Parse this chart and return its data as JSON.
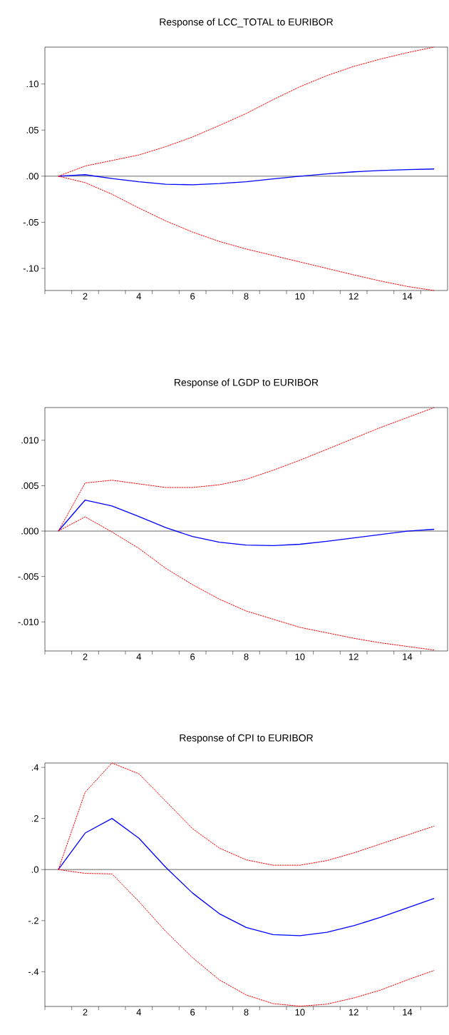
{
  "chart_data": [
    {
      "type": "line",
      "title": "Response of LCC_TOTAL to EURIBOR",
      "x": [
        1,
        2,
        3,
        4,
        5,
        6,
        7,
        8,
        9,
        10,
        11,
        12,
        13,
        14,
        15
      ],
      "xlim": [
        0.5,
        15.5
      ],
      "xticks": [
        {
          "value": 0.5,
          "label": null
        },
        {
          "value": 1.5,
          "label": null
        },
        2,
        {
          "value": 2.5,
          "label": null
        },
        {
          "value": 3.5,
          "label": null
        },
        4,
        {
          "value": 4.5,
          "label": null
        },
        {
          "value": 5.5,
          "label": null
        },
        6,
        {
          "value": 6.5,
          "label": null
        },
        {
          "value": 7.5,
          "label": null
        },
        8,
        {
          "value": 8.5,
          "label": null
        },
        {
          "value": 9.5,
          "label": null
        },
        10,
        {
          "value": 10.5,
          "label": null
        },
        {
          "value": 11.5,
          "label": null
        },
        12,
        {
          "value": 12.5,
          "label": null
        },
        {
          "value": 13.5,
          "label": null
        },
        14,
        {
          "value": 14.5,
          "label": null
        }
      ],
      "ylim": [
        -0.124,
        0.14
      ],
      "yticks": [
        {
          "value": -0.1,
          "label": "-.10"
        },
        {
          "value": -0.05,
          "label": "-.05"
        },
        {
          "value": 0,
          "label": ".00"
        },
        {
          "value": 0.05,
          "label": ".05"
        },
        {
          "value": 0.1,
          "label": ".10"
        }
      ],
      "ref_lines": [
        {
          "axis": "y",
          "value": 0,
          "color": "#000000"
        }
      ],
      "series": [
        {
          "color": "#ff0000",
          "line_style": "dashed",
          "values": [
            0,
            0.011,
            0.017,
            0.023,
            0.032,
            0.0425,
            0.055,
            0.068,
            0.083,
            0.097,
            0.109,
            0.119,
            0.127,
            0.134,
            0.14
          ]
        },
        {
          "color": "#ff0000",
          "line_style": "dashed",
          "values": [
            0,
            -0.007,
            -0.0196,
            -0.0345,
            -0.0485,
            -0.0606,
            -0.0708,
            -0.079,
            -0.086,
            -0.093,
            -0.1,
            -0.107,
            -0.1137,
            -0.1196,
            -0.124
          ]
        },
        {
          "color": "#0000ff",
          "line_style": "solid",
          "values": [
            0,
            0.0016,
            -0.0025,
            -0.006,
            -0.0087,
            -0.0093,
            -0.008,
            -0.006,
            -0.003,
            0,
            0.0025,
            0.0047,
            0.0062,
            0.0071,
            0.0078
          ]
        }
      ]
    },
    {
      "type": "line",
      "title": "Response of LGDP to EURIBOR",
      "x": [
        1,
        2,
        3,
        4,
        5,
        6,
        7,
        8,
        9,
        10,
        11,
        12,
        13,
        14,
        15
      ],
      "xlim": [
        0.5,
        15.5
      ],
      "xticks": [
        {
          "value": 0.5,
          "label": null
        },
        {
          "value": 1.5,
          "label": null
        },
        2,
        {
          "value": 2.5,
          "label": null
        },
        {
          "value": 3.5,
          "label": null
        },
        4,
        {
          "value": 4.5,
          "label": null
        },
        {
          "value": 5.5,
          "label": null
        },
        6,
        {
          "value": 6.5,
          "label": null
        },
        {
          "value": 7.5,
          "label": null
        },
        8,
        {
          "value": 8.5,
          "label": null
        },
        {
          "value": 9.5,
          "label": null
        },
        10,
        {
          "value": 10.5,
          "label": null
        },
        {
          "value": 11.5,
          "label": null
        },
        12,
        {
          "value": 12.5,
          "label": null
        },
        {
          "value": 13.5,
          "label": null
        },
        14,
        {
          "value": 14.5,
          "label": null
        }
      ],
      "ylim": [
        -0.0132,
        0.0136
      ],
      "yticks": [
        {
          "value": -0.01,
          "label": "-.010"
        },
        {
          "value": -0.005,
          "label": "-.005"
        },
        {
          "value": 0,
          "label": ".000"
        },
        {
          "value": 0.005,
          "label": ".005"
        },
        {
          "value": 0.01,
          "label": ".010"
        }
      ],
      "ref_lines": [
        {
          "axis": "y",
          "value": 0,
          "color": "#000000"
        }
      ],
      "series": [
        {
          "color": "#ff0000",
          "line_style": "dashed",
          "values": [
            0,
            0.0053,
            0.0056,
            0.0052,
            0.0048,
            0.0048,
            0.0051,
            0.0057,
            0.0067,
            0.0078,
            0.009,
            0.0102,
            0.0114,
            0.0125,
            0.0136
          ]
        },
        {
          "color": "#ff0000",
          "line_style": "dashed",
          "values": [
            0,
            0.00157,
            -0.0001,
            -0.0019,
            -0.0041,
            -0.0059,
            -0.0075,
            -0.0088,
            -0.0097,
            -0.0106,
            -0.0112,
            -0.0118,
            -0.0123,
            -0.0127,
            -0.0131
          ]
        },
        {
          "color": "#0000ff",
          "line_style": "solid",
          "values": [
            0,
            0.00342,
            0.00277,
            0.0016,
            0.00038,
            -0.0006,
            -0.00123,
            -0.00154,
            -0.0016,
            -0.00145,
            -0.00113,
            -0.00075,
            -0.00038,
            0,
            0.0002
          ]
        }
      ]
    },
    {
      "type": "line",
      "title": "Response of CPI to EURIBOR",
      "x": [
        1,
        2,
        3,
        4,
        5,
        6,
        7,
        8,
        9,
        10,
        11,
        12,
        13,
        14,
        15
      ],
      "xlim": [
        0.5,
        15.5
      ],
      "xticks": [
        {
          "value": 0.5,
          "label": null
        },
        {
          "value": 1.5,
          "label": null
        },
        2,
        {
          "value": 2.5,
          "label": null
        },
        {
          "value": 3.5,
          "label": null
        },
        4,
        {
          "value": 4.5,
          "label": null
        },
        {
          "value": 5.5,
          "label": null
        },
        6,
        {
          "value": 6.5,
          "label": null
        },
        {
          "value": 7.5,
          "label": null
        },
        8,
        {
          "value": 8.5,
          "label": null
        },
        {
          "value": 9.5,
          "label": null
        },
        10,
        {
          "value": 10.5,
          "label": null
        },
        {
          "value": 11.5,
          "label": null
        },
        12,
        {
          "value": 12.5,
          "label": null
        },
        {
          "value": 13.5,
          "label": null
        },
        14,
        {
          "value": 14.5,
          "label": null
        }
      ],
      "ylim": [
        -0.536,
        0.417
      ],
      "yticks": [
        {
          "value": -0.4,
          "label": "-.4"
        },
        {
          "value": -0.2,
          "label": "-.2"
        },
        {
          "value": 0,
          "label": ".0"
        },
        {
          "value": 0.2,
          "label": ".2"
        },
        {
          "value": 0.4,
          "label": ".4"
        }
      ],
      "ref_lines": [
        {
          "axis": "y",
          "value": 0,
          "color": "#000000"
        }
      ],
      "series": [
        {
          "color": "#ff0000",
          "line_style": "dashed",
          "values": [
            0,
            0.303,
            0.417,
            0.375,
            0.268,
            0.16,
            0.084,
            0.038,
            0.017,
            0.017,
            0.035,
            0.065,
            0.1,
            0.135,
            0.17
          ]
        },
        {
          "color": "#ff0000",
          "line_style": "dashed",
          "values": [
            0,
            -0.015,
            -0.017,
            -0.125,
            -0.242,
            -0.345,
            -0.432,
            -0.491,
            -0.525,
            -0.535,
            -0.527,
            -0.503,
            -0.472,
            -0.432,
            -0.395
          ]
        },
        {
          "color": "#0000ff",
          "line_style": "solid",
          "values": [
            0,
            0.143,
            0.2,
            0.123,
            0.009,
            -0.092,
            -0.173,
            -0.227,
            -0.255,
            -0.259,
            -0.246,
            -0.22,
            -0.187,
            -0.15,
            -0.113
          ]
        }
      ]
    }
  ]
}
